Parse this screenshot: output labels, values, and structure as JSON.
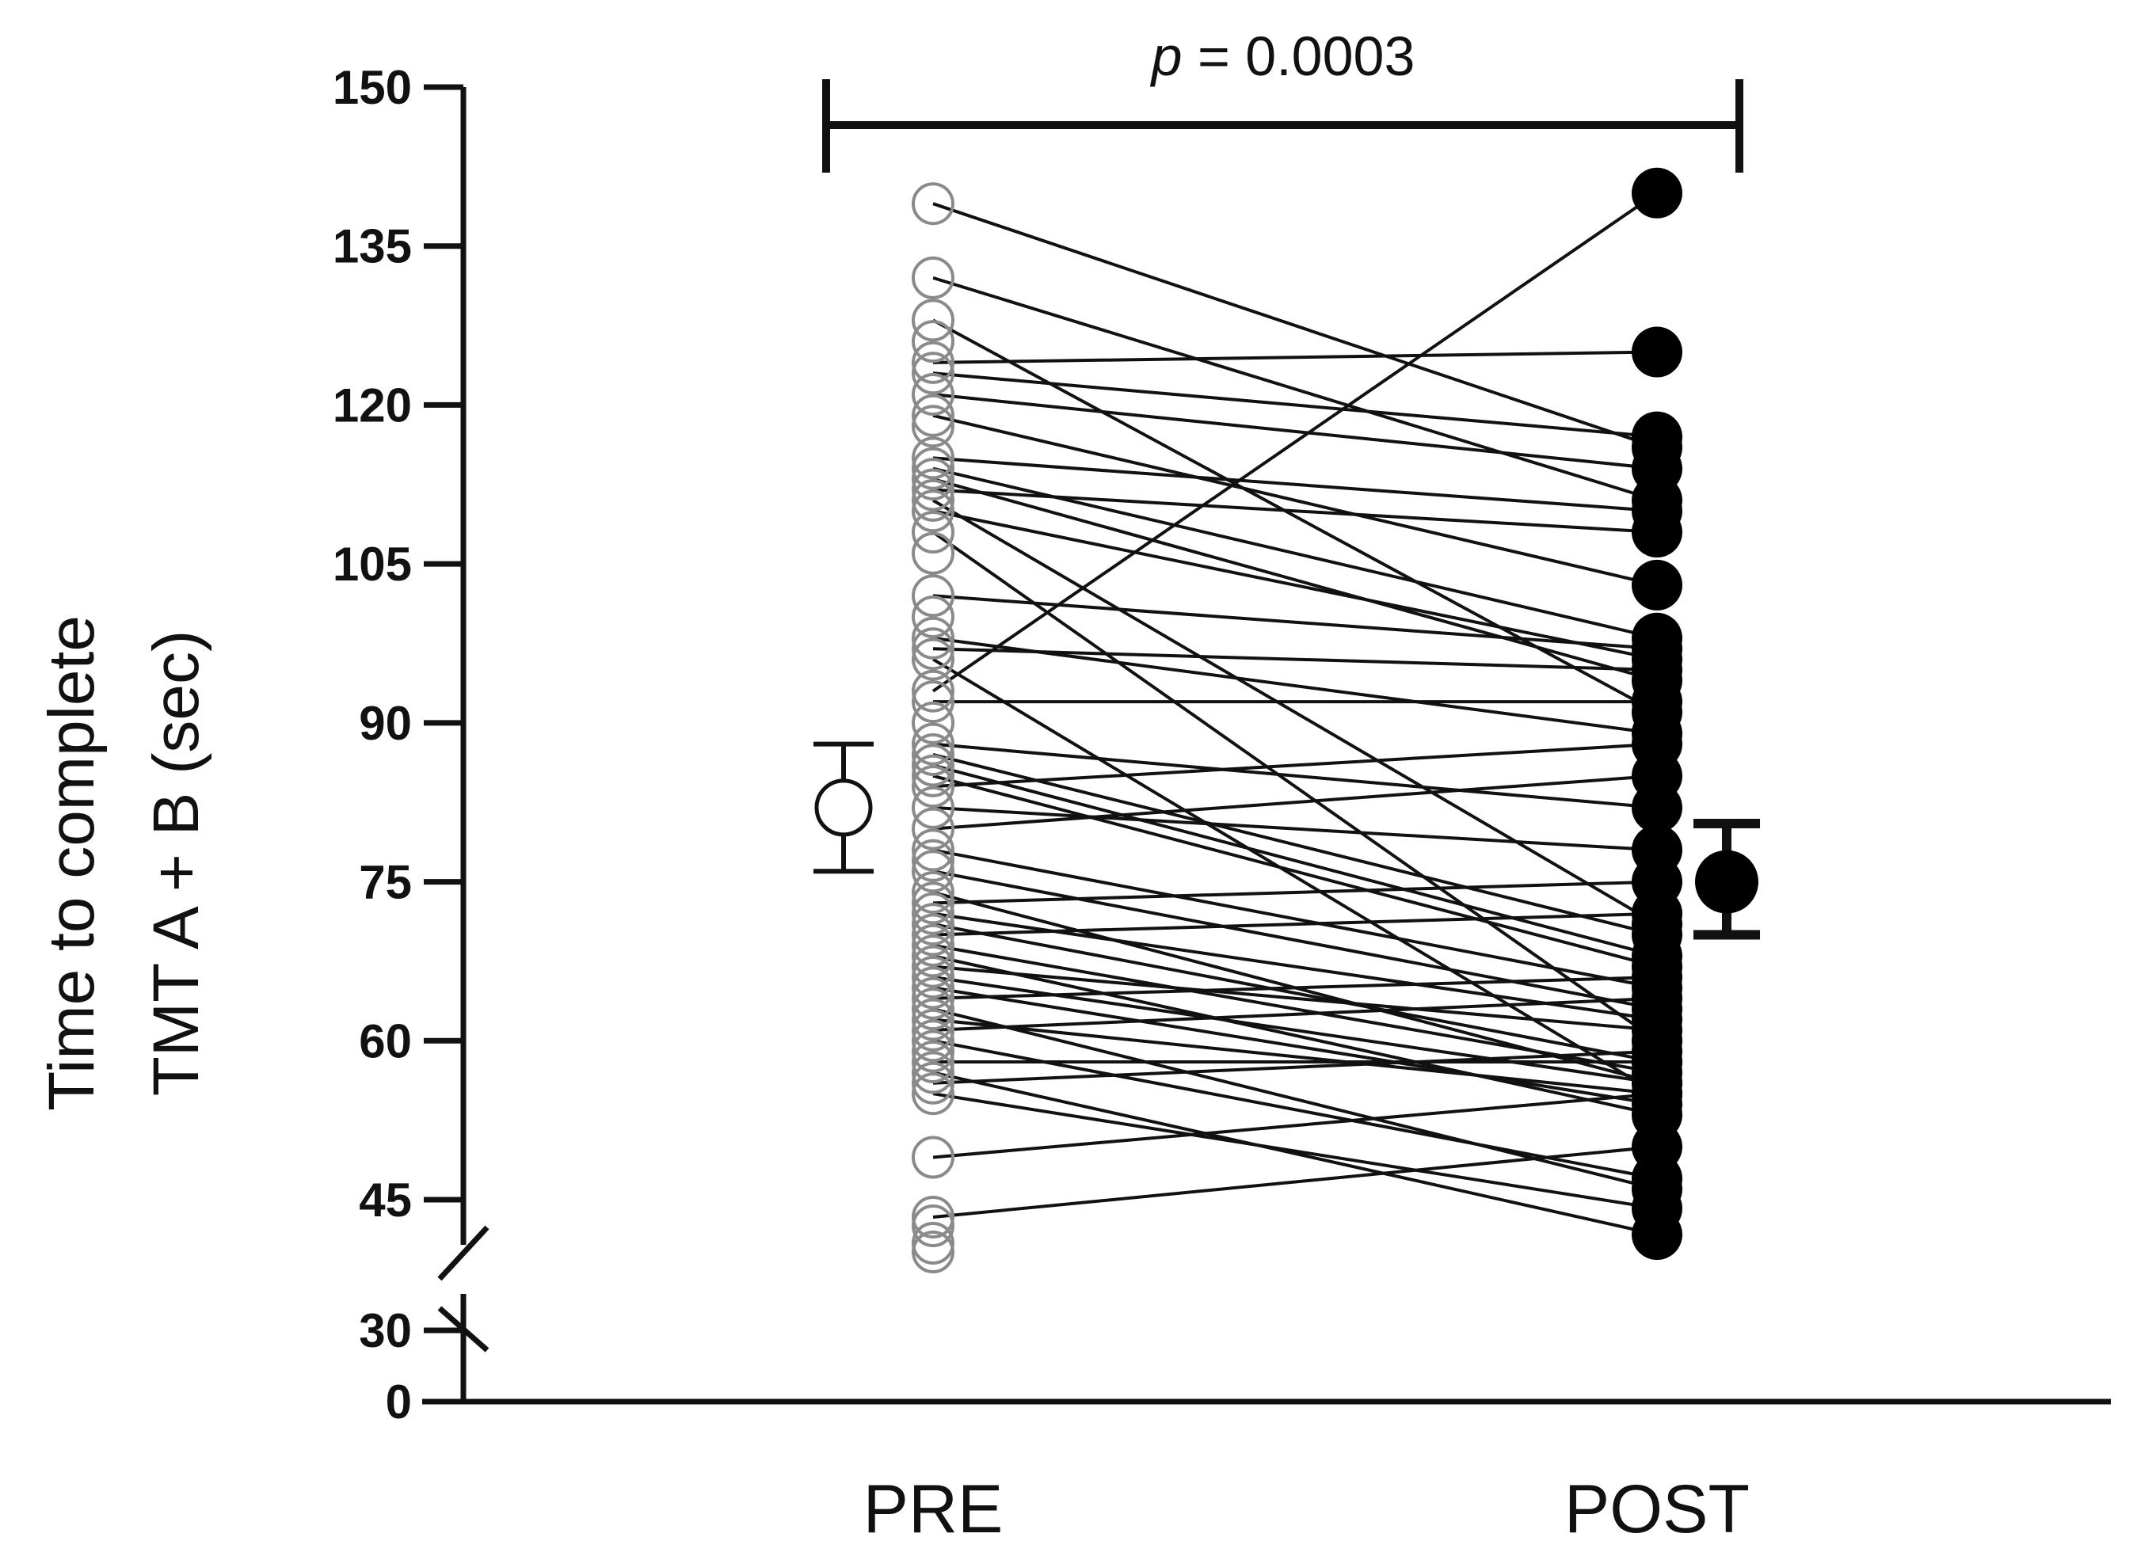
{
  "chart_data": {
    "type": "scatter",
    "subtype": "paired before-after dot plot",
    "ylabel_lines": [
      "Time to complete",
      "TMT A + B (sec)"
    ],
    "categories": [
      "PRE",
      "POST"
    ],
    "y_ticks": [
      0,
      30,
      45,
      60,
      75,
      90,
      105,
      120,
      135,
      150
    ],
    "y_tick_labels": [
      "0",
      "30",
      "45",
      "60",
      "75",
      "90",
      "105",
      "120",
      "135",
      "150"
    ],
    "y_axis_break": [
      30,
      45
    ],
    "ylim": [
      0,
      150
    ],
    "significance": {
      "p_italic": "p",
      "rest": " = 0.0003"
    },
    "colors": {
      "ink": "#111111",
      "pre_marker": "#8a8a8a",
      "post_marker": "#000000"
    },
    "summary": {
      "PRE": {
        "mean": 82,
        "lower": 76,
        "upper": 88,
        "marker": "open circle"
      },
      "POST": {
        "mean": 75,
        "lower": 70,
        "upper": 80.5,
        "marker": "filled circle"
      }
    },
    "pairs": [
      [
        139,
        116
      ],
      [
        132,
        111
      ],
      [
        128,
        91
      ],
      [
        124,
        125
      ],
      [
        123,
        117
      ],
      [
        121,
        114
      ],
      [
        119,
        103
      ],
      [
        115,
        110
      ],
      [
        114,
        98
      ],
      [
        113,
        94
      ],
      [
        112,
        108
      ],
      [
        111,
        71
      ],
      [
        110,
        96
      ],
      [
        108,
        60
      ],
      [
        102,
        97
      ],
      [
        98,
        89
      ],
      [
        97,
        95
      ],
      [
        96,
        55
      ],
      [
        93,
        140
      ],
      [
        92,
        92
      ],
      [
        88,
        82
      ],
      [
        87,
        70
      ],
      [
        86,
        68
      ],
      [
        85,
        67
      ],
      [
        84,
        88
      ],
      [
        82,
        78
      ],
      [
        80,
        85
      ],
      [
        78,
        65
      ],
      [
        76,
        63
      ],
      [
        74,
        56
      ],
      [
        73,
        75
      ],
      [
        72,
        62
      ],
      [
        71,
        58
      ],
      [
        70,
        72
      ],
      [
        69,
        57
      ],
      [
        68,
        53
      ],
      [
        67,
        61
      ],
      [
        66,
        56
      ],
      [
        65,
        54
      ],
      [
        64,
        66
      ],
      [
        63,
        46
      ],
      [
        62,
        55
      ],
      [
        61,
        64
      ],
      [
        60,
        47
      ],
      [
        58,
        58
      ],
      [
        57,
        41
      ],
      [
        56,
        59
      ],
      [
        55,
        44
      ],
      [
        49,
        55
      ],
      [
        43,
        50
      ]
    ],
    "extra_pre_points": [
      42,
      40,
      39,
      126,
      118,
      106,
      100,
      90,
      77,
      59
    ]
  }
}
